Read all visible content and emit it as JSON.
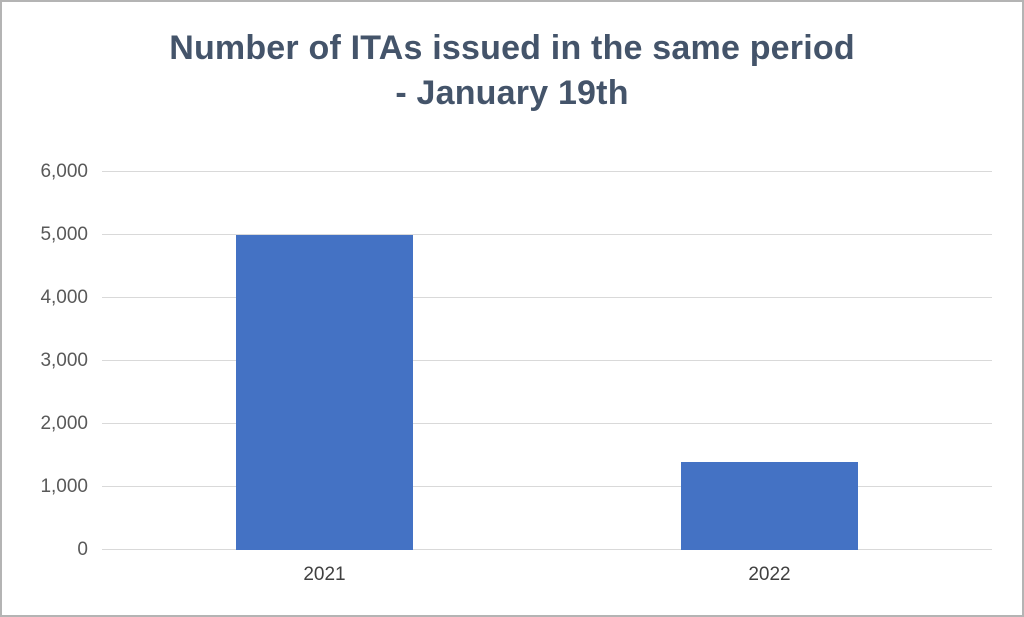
{
  "chart_data": {
    "type": "bar",
    "title": "Number of ITAs issued in the same period - January 19th",
    "title_lines": [
      "Number of ITAs issued in the same period",
      "- January 19th"
    ],
    "categories": [
      "2021",
      "2022"
    ],
    "values": [
      5000,
      1400
    ],
    "xlabel": "",
    "ylabel": "",
    "ylim": [
      0,
      6000
    ],
    "ytick_step": 1000,
    "yticks": [
      0,
      1000,
      2000,
      3000,
      4000,
      5000,
      6000
    ],
    "ytick_labels": [
      "0",
      "1,000",
      "2,000",
      "3,000",
      "4,000",
      "5,000",
      "6,000"
    ],
    "grid": true,
    "legend": false,
    "colors": {
      "bar": "#4472C4",
      "title": "#44546A",
      "axis_text": "#595959",
      "gridline": "#D9D9D9",
      "frame_border": "#B4B4B4",
      "background": "#FFFFFF"
    }
  }
}
